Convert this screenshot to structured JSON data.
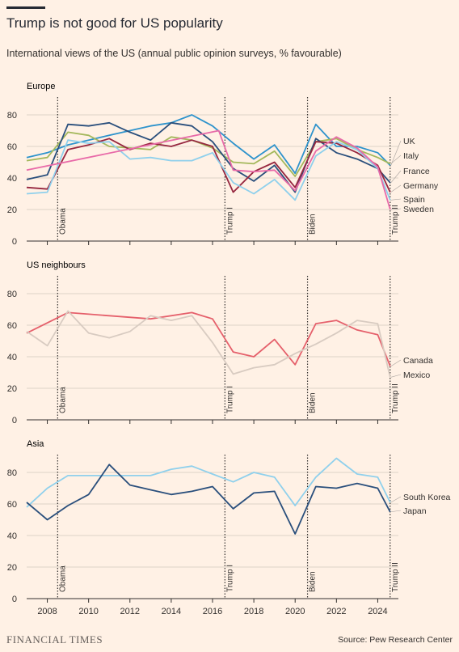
{
  "header": {
    "title": "Trump is not good for US popularity",
    "subtitle": "International views of the US (annual public opinion surveys, % favourable)"
  },
  "footer": {
    "brand": "FINANCIAL TIMES",
    "source": "Source: Pew Research Center"
  },
  "colors": {
    "background": "#fff1e5",
    "grid": "#ddd2c7",
    "axis": "#33302e"
  },
  "chart_data": [
    {
      "type": "line",
      "panel_title": "Europe",
      "xlim": [
        2007,
        2025
      ],
      "ylim": [
        0,
        90
      ],
      "yticks": [
        0,
        20,
        40,
        60,
        80
      ],
      "xticks": [
        2008,
        2010,
        2012,
        2014,
        2016,
        2018,
        2020,
        2022,
        2024
      ],
      "annotations": [
        {
          "x": 2008.5,
          "label": "Obama"
        },
        {
          "x": 2016.6,
          "label": "Trump I"
        },
        {
          "x": 2020.6,
          "label": "Biden"
        },
        {
          "x": 2024.6,
          "label": "Trump II"
        }
      ],
      "series": [
        {
          "name": "UK",
          "color": "#2e93cc",
          "x": [
            2007,
            2008,
            2009,
            2010,
            2011,
            2013,
            2014,
            2015,
            2016,
            2017,
            2018,
            2019,
            2020,
            2021,
            2022,
            2023,
            2024,
            2024.6
          ],
          "y": [
            53,
            56,
            61,
            64,
            67,
            73,
            75,
            80,
            73,
            62,
            52,
            61,
            43,
            74,
            60,
            60,
            56,
            48
          ]
        },
        {
          "name": "Italy",
          "color": "#a4b85c",
          "x": [
            2007,
            2008,
            2009,
            2010,
            2011,
            2012,
            2013,
            2014,
            2015,
            2016,
            2017,
            2018,
            2019,
            2020,
            2021,
            2022,
            2023,
            2024,
            2024.6
          ],
          "y": [
            51,
            53,
            69,
            67,
            60,
            59,
            58,
            66,
            64,
            59,
            50,
            49,
            57,
            41,
            63,
            65,
            58,
            53,
            49
          ]
        },
        {
          "name": "France",
          "color": "#2a4f7c",
          "x": [
            2007,
            2008,
            2009,
            2010,
            2011,
            2012,
            2013,
            2014,
            2015,
            2016,
            2017,
            2018,
            2019,
            2020,
            2021,
            2022,
            2023,
            2024,
            2024.6
          ],
          "y": [
            39,
            42,
            74,
            73,
            75,
            69,
            64,
            75,
            73,
            63,
            46,
            38,
            48,
            31,
            65,
            56,
            52,
            46,
            37
          ]
        },
        {
          "name": "Germany",
          "color": "#96263f",
          "x": [
            2007,
            2008,
            2009,
            2010,
            2011,
            2012,
            2013,
            2014,
            2015,
            2016,
            2017,
            2018,
            2019,
            2020,
            2021,
            2022,
            2023,
            2024,
            2024.6
          ],
          "y": [
            34,
            33,
            58,
            61,
            65,
            58,
            62,
            60,
            64,
            60,
            31,
            44,
            50,
            34,
            63,
            62,
            56,
            48,
            31
          ]
        },
        {
          "name": "Spain",
          "color": "#8fd0ec",
          "x": [
            2007,
            2008,
            2009,
            2010,
            2011,
            2012,
            2013,
            2014,
            2015,
            2016,
            2017,
            2018,
            2019,
            2020,
            2021,
            2022,
            2023,
            2024,
            2024.6
          ],
          "y": [
            30,
            31,
            64,
            62,
            63,
            52,
            53,
            51,
            51,
            56,
            37,
            30,
            39,
            26,
            54,
            63,
            58,
            46,
            26
          ]
        },
        {
          "name": "Sweden",
          "color": "#e86aa8",
          "x": [
            2007,
            2016.3,
            2017,
            2018,
            2019,
            2020,
            2021,
            2022,
            2023,
            2024,
            2024.6
          ],
          "y": [
            45,
            70,
            45,
            44,
            45,
            32,
            57,
            66,
            59,
            47,
            20
          ]
        }
      ]
    },
    {
      "type": "line",
      "panel_title": "US neighbours",
      "xlim": [
        2007,
        2025
      ],
      "ylim": [
        0,
        90
      ],
      "yticks": [
        0,
        20,
        40,
        60,
        80
      ],
      "xticks": [
        2008,
        2010,
        2012,
        2014,
        2016,
        2018,
        2020,
        2022,
        2024
      ],
      "annotations": [
        {
          "x": 2008.5,
          "label": "Obama"
        },
        {
          "x": 2016.6,
          "label": "Trump I"
        },
        {
          "x": 2020.6,
          "label": "Biden"
        },
        {
          "x": 2024.6,
          "label": "Trump II"
        }
      ],
      "series": [
        {
          "name": "Canada",
          "color": "#e5606b",
          "x": [
            2007,
            2009,
            2013,
            2015,
            2016,
            2017,
            2018,
            2019,
            2020,
            2021,
            2022,
            2023,
            2024,
            2024.6
          ],
          "y": [
            55,
            68,
            64,
            68,
            64,
            43,
            40,
            51,
            35,
            61,
            63,
            57,
            54,
            34
          ]
        },
        {
          "name": "Mexico",
          "color": "#d8cbc1",
          "x": [
            2007,
            2008,
            2009,
            2010,
            2011,
            2012,
            2013,
            2014,
            2015,
            2016,
            2017,
            2018,
            2019,
            2020,
            2021,
            2022,
            2023,
            2024,
            2024.6
          ],
          "y": [
            56,
            47,
            69,
            55,
            52,
            56,
            66,
            63,
            66,
            49,
            29,
            33,
            35,
            42,
            48,
            55,
            63,
            61,
            27
          ]
        }
      ]
    },
    {
      "type": "line",
      "panel_title": "Asia",
      "xlim": [
        2007,
        2025
      ],
      "ylim": [
        0,
        90
      ],
      "yticks": [
        0,
        20,
        40,
        60,
        80
      ],
      "xticks": [
        2008,
        2010,
        2012,
        2014,
        2016,
        2018,
        2020,
        2022,
        2024
      ],
      "annotations": [
        {
          "x": 2008.5,
          "label": "Obama"
        },
        {
          "x": 2016.6,
          "label": "Trump I"
        },
        {
          "x": 2020.6,
          "label": "Biden"
        },
        {
          "x": 2024.6,
          "label": "Trump II"
        }
      ],
      "series": [
        {
          "name": "South Korea",
          "color": "#8fd0ec",
          "x": [
            2007,
            2008,
            2009,
            2010,
            2011,
            2012,
            2013,
            2014,
            2015,
            2016,
            2017,
            2018,
            2019,
            2020,
            2021,
            2022,
            2023,
            2024,
            2024.6
          ],
          "y": [
            58,
            70,
            78,
            78,
            78,
            78,
            78,
            82,
            84,
            79,
            74,
            80,
            77,
            59,
            77,
            89,
            79,
            77,
            61
          ]
        },
        {
          "name": "Japan",
          "color": "#2a4f7c",
          "x": [
            2007,
            2008,
            2009,
            2010,
            2011,
            2012,
            2013,
            2014,
            2015,
            2016,
            2017,
            2018,
            2019,
            2020,
            2021,
            2022,
            2023,
            2024,
            2024.6
          ],
          "y": [
            61,
            50,
            59,
            66,
            85,
            72,
            69,
            66,
            68,
            71,
            57,
            67,
            68,
            41,
            71,
            70,
            73,
            70,
            55
          ]
        }
      ]
    }
  ]
}
